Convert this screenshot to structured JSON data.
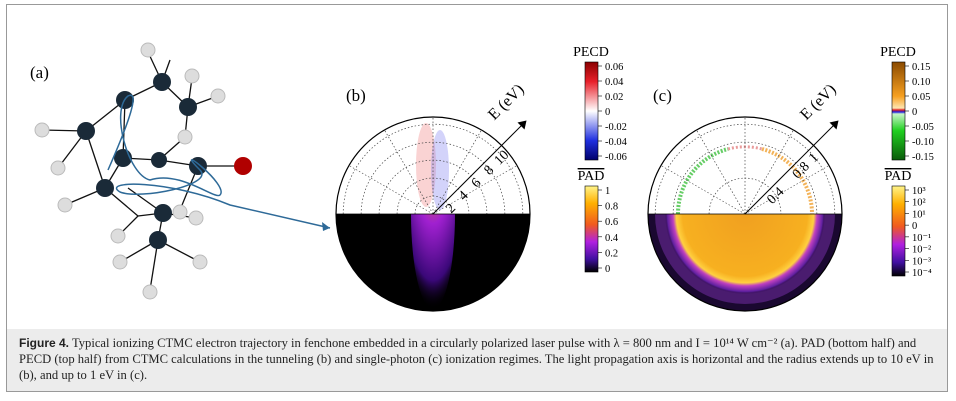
{
  "figure": {
    "panels": [
      {
        "label": "(a)"
      },
      {
        "label": "(b)",
        "axis_label": "E (eV)",
        "radial_ticks": [
          "2",
          "4",
          "6",
          "8",
          "10"
        ],
        "colorbars": [
          {
            "title": "PECD",
            "ticks": [
              "0.06",
              "0.04",
              "0.02",
              "0",
              "-0.02",
              "-0.04",
              "-0.06"
            ]
          },
          {
            "title": "PAD",
            "ticks": [
              "1",
              "0.8",
              "0.6",
              "0.4",
              "0.2",
              "0"
            ]
          }
        ]
      },
      {
        "label": "(c)",
        "axis_label": "E (eV)",
        "radial_ticks": [
          "0.4",
          "0.8",
          "1"
        ],
        "colorbars": [
          {
            "title": "PECD",
            "ticks": [
              "0.15",
              "0.10",
              "0.05",
              "0",
              "-0.05",
              "-0.10",
              "-0.15"
            ]
          },
          {
            "title": "PAD",
            "ticks": [
              "10³",
              "10²",
              "10¹",
              "0",
              "10⁻¹",
              "10⁻²",
              "10⁻³",
              "10⁻⁴"
            ]
          }
        ]
      }
    ],
    "caption": {
      "label": "Figure 4.",
      "text": "Typical ionizing CTMC electron trajectory in fenchone embedded in a circularly polarized laser pulse with λ = 800 nm and I = 10¹⁴ W cm⁻² (a). PAD (bottom half) and PECD (top half) from CTMC calculations in the tunneling (b) and single-photon (c) ionization regimes. The light propagation axis is horizontal and the radius extends up to 10 eV in (b), and up to 1 eV in (c)."
    }
  }
}
